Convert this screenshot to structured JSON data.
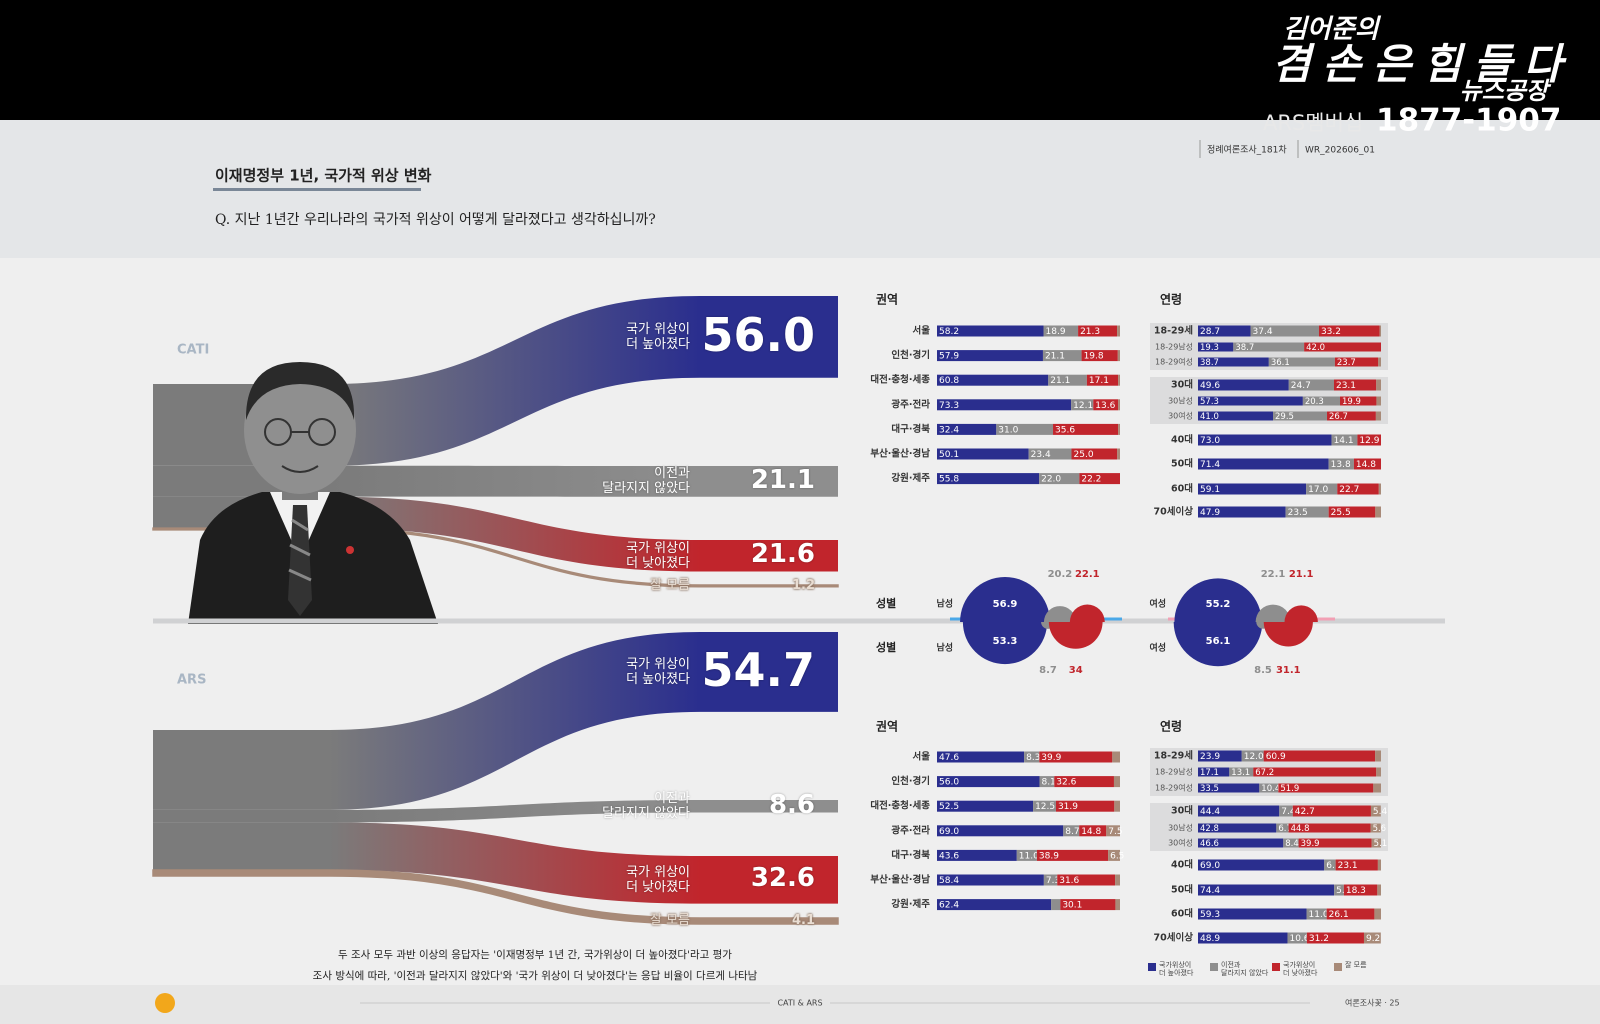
{
  "broadcast": {
    "logo": [
      "김어준의",
      "겸손은힘들다",
      "뉴스공장"
    ],
    "membership": "ARS멤버십",
    "phone": "1877-1907"
  },
  "header": {
    "survey_round": "정례여론조사_181차",
    "code": "WR_202606_01",
    "title": "이재명정부 1년, 국가적 위상 변화",
    "question": "Q. 지난 1년간 우리나라의 국가적 위상이 어떻게 달라졌다고 생각하십니까?"
  },
  "answers": [
    "국가 위상이\n더 높아졌다",
    "이전과\n달라지지 않았다",
    "국가 위상이\n더 낮아졌다",
    "잘 모름"
  ],
  "colors": [
    "#2a2e8e",
    "#8e8e8e",
    "#c1252c",
    "#a88a78"
  ],
  "surveys": [
    {
      "name": "CATI",
      "totals": [
        56.0,
        21.1,
        21.6,
        1.2
      ],
      "total_labels": [
        "56.0",
        "21.1",
        "21.6",
        "1.2"
      ],
      "region_title": "권역",
      "regions": [
        {
          "label": "서울",
          "values": [
            58.2,
            18.9,
            21.3,
            1.6
          ],
          "labels": [
            "58.2",
            "18.9",
            "21.3",
            null
          ]
        },
        {
          "label": "인천·경기",
          "values": [
            57.9,
            21.1,
            19.8,
            1.2
          ],
          "labels": [
            "57.9",
            "21.1",
            "19.8",
            null
          ]
        },
        {
          "label": "대전·충청·세종",
          "values": [
            60.8,
            21.1,
            17.1,
            1.0
          ],
          "labels": [
            "60.8",
            "21.1",
            "17.1",
            null
          ]
        },
        {
          "label": "광주·전라",
          "values": [
            73.3,
            12.1,
            13.6,
            1.0
          ],
          "labels": [
            "73.3",
            "12.1",
            "13.6",
            null
          ]
        },
        {
          "label": "대구·경북",
          "values": [
            32.4,
            31.0,
            35.6,
            1.0
          ],
          "labels": [
            "32.4",
            "31.0",
            "35.6",
            null
          ]
        },
        {
          "label": "부산·울산·경남",
          "values": [
            50.1,
            23.4,
            25.0,
            1.5
          ],
          "labels": [
            "50.1",
            "23.4",
            "25.0",
            null
          ]
        },
        {
          "label": "강원·제주",
          "values": [
            55.8,
            22.0,
            22.2,
            0
          ],
          "labels": [
            "55.8",
            "22.0",
            "22.2",
            null
          ]
        }
      ],
      "age_title": "연령",
      "ages": [
        {
          "label": "18-29세",
          "values": [
            28.7,
            37.4,
            33.2,
            0.7
          ],
          "labels": [
            "28.7",
            "37.4",
            "33.2",
            null
          ],
          "breakdown": [
            {
              "label": "18-29남성",
              "values": [
                19.3,
                38.7,
                42.0,
                0
              ],
              "labels": [
                "19.3",
                "38.7",
                "42.0",
                null
              ]
            },
            {
              "label": "18-29여성",
              "values": [
                38.7,
                36.1,
                23.7,
                1.5
              ],
              "labels": [
                "38.7",
                "36.1",
                "23.7",
                null
              ]
            }
          ]
        },
        {
          "label": "30대",
          "values": [
            49.6,
            24.7,
            23.1,
            2.6
          ],
          "labels": [
            "49.6",
            "24.7",
            "23.1",
            null
          ],
          "breakdown": [
            {
              "label": "30남성",
              "values": [
                57.3,
                20.3,
                19.9,
                2.5
              ],
              "labels": [
                "57.3",
                "20.3",
                "19.9",
                null
              ]
            },
            {
              "label": "30여성",
              "values": [
                41.0,
                29.5,
                26.7,
                2.8
              ],
              "labels": [
                "41.0",
                "29.5",
                "26.7",
                null
              ]
            }
          ]
        },
        {
          "label": "40대",
          "values": [
            73.0,
            14.1,
            12.9,
            0
          ],
          "labels": [
            "73.0",
            "14.1",
            "12.9",
            null
          ]
        },
        {
          "label": "50대",
          "values": [
            71.4,
            13.8,
            14.8,
            0
          ],
          "labels": [
            "71.4",
            "13.8",
            "14.8",
            null
          ]
        },
        {
          "label": "60대",
          "values": [
            59.1,
            17.0,
            22.7,
            1.2
          ],
          "labels": [
            "59.1",
            "17.0",
            "22.7",
            null
          ]
        },
        {
          "label": "70세이상",
          "values": [
            47.9,
            23.5,
            25.5,
            3.1
          ],
          "labels": [
            "47.9",
            "23.5",
            "25.5",
            null
          ]
        }
      ],
      "gender_title": "성별",
      "genders": [
        {
          "label": "남성",
          "values": [
            56.9,
            20.2,
            22.1
          ]
        },
        {
          "label": "여성",
          "values": [
            55.2,
            22.1,
            21.1
          ]
        }
      ]
    },
    {
      "name": "ARS",
      "totals": [
        54.7,
        8.6,
        32.6,
        4.1
      ],
      "total_labels": [
        "54.7",
        "8.6",
        "32.6",
        "4.1"
      ],
      "region_title": "권역",
      "regions": [
        {
          "label": "서울",
          "values": [
            47.6,
            8.3,
            39.9,
            4.2
          ],
          "labels": [
            "47.6",
            "8.3",
            "39.9",
            null
          ]
        },
        {
          "label": "인천·경기",
          "values": [
            56.0,
            8.1,
            32.6,
            3.3
          ],
          "labels": [
            "56.0",
            "8.1",
            "32.6",
            null
          ]
        },
        {
          "label": "대전·충청·세종",
          "values": [
            52.5,
            12.5,
            31.9,
            3.1
          ],
          "labels": [
            "52.5",
            "12.5",
            "31.9",
            null
          ]
        },
        {
          "label": "광주·전라",
          "values": [
            69.0,
            8.7,
            14.8,
            7.5
          ],
          "labels": [
            "69.0",
            "8.7",
            "14.8",
            "7.5"
          ]
        },
        {
          "label": "대구·경북",
          "values": [
            43.6,
            11.0,
            38.9,
            6.5
          ],
          "labels": [
            "43.6",
            "11.0",
            "38.9",
            "6.5"
          ]
        },
        {
          "label": "부산·울산·경남",
          "values": [
            58.4,
            7.3,
            31.6,
            2.7
          ],
          "labels": [
            "58.4",
            "7.3",
            "31.6",
            null
          ]
        },
        {
          "label": "강원·제주",
          "values": [
            62.4,
            5.0,
            30.1,
            2.5
          ],
          "labels": [
            "62.4",
            null,
            "30.1",
            null
          ]
        }
      ],
      "age_title": "연령",
      "ages": [
        {
          "label": "18-29세",
          "values": [
            23.9,
            12.0,
            60.9,
            3.2
          ],
          "labels": [
            "23.9",
            "12.0",
            "60.9",
            null
          ],
          "breakdown": [
            {
              "label": "18-29남성",
              "values": [
                17.1,
                13.1,
                67.2,
                2.6
              ],
              "labels": [
                "17.1",
                "13.1",
                "67.2",
                null
              ]
            },
            {
              "label": "18-29여성",
              "values": [
                33.5,
                10.4,
                51.9,
                4.2
              ],
              "labels": [
                "33.5",
                "10.4",
                "51.9",
                null
              ]
            }
          ]
        },
        {
          "label": "30대",
          "values": [
            44.4,
            7.4,
            42.7,
            5.4
          ],
          "labels": [
            "44.4",
            "7.4",
            "42.7",
            "5.4"
          ],
          "breakdown": [
            {
              "label": "30남성",
              "values": [
                42.8,
                6.7,
                44.8,
                5.6
              ],
              "labels": [
                "42.8",
                "6.7",
                "44.8",
                "5.6"
              ]
            },
            {
              "label": "30여성",
              "values": [
                46.6,
                8.4,
                39.9,
                5.1
              ],
              "labels": [
                "46.6",
                "8.4",
                "39.9",
                "5.1"
              ]
            }
          ]
        },
        {
          "label": "40대",
          "values": [
            69.0,
            6.2,
            23.1,
            1.7
          ],
          "labels": [
            "69.0",
            "6.2",
            "23.1",
            null
          ]
        },
        {
          "label": "50대",
          "values": [
            74.4,
            5.3,
            18.3,
            2.0
          ],
          "labels": [
            "74.4",
            "5.3",
            "18.3",
            null
          ]
        },
        {
          "label": "60대",
          "values": [
            59.3,
            11.0,
            26.1,
            3.6
          ],
          "labels": [
            "59.3",
            "11.0",
            "26.1",
            null
          ]
        },
        {
          "label": "70세이상",
          "values": [
            48.9,
            10.6,
            31.2,
            9.2
          ],
          "labels": [
            "48.9",
            "10.6",
            "31.2",
            "9.2"
          ]
        }
      ],
      "gender_title": "성별",
      "genders": [
        {
          "label": "남성",
          "values": [
            53.3,
            8.7,
            34.0
          ]
        },
        {
          "label": "여성",
          "values": [
            56.1,
            8.5,
            31.1
          ]
        }
      ]
    }
  ],
  "legend": [
    "국가위상이\n더 높아졌다",
    "이전과\n달라지지 않았다",
    "국가위상이\n더 낮아졌다",
    "잘 모름"
  ],
  "note": [
    "두 조사 모두 과반 이상의 응답자는 '이재명정부 1년 간, 국가위상이 더 높아졌다'라고 평가",
    "조사 방식에 따라, '이전과 달라지지 않았다'와 '국가 위상이 더 낮아졌다'는 응답 비율이 다르게 나타남"
  ],
  "footer": {
    "center": "CATI & ARS",
    "page": "여론조사꽃 · 25"
  }
}
